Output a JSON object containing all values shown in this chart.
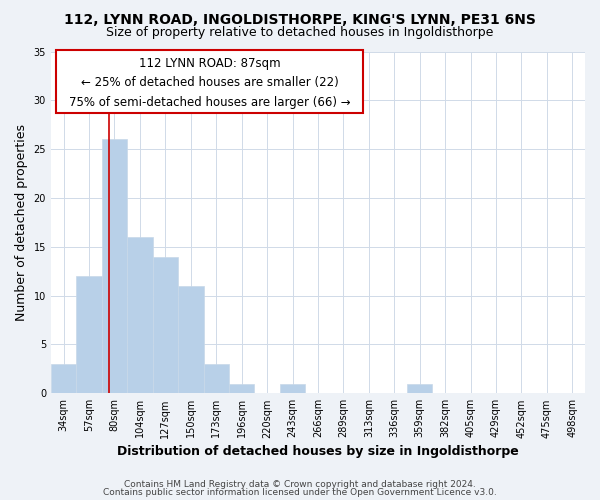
{
  "title": "112, LYNN ROAD, INGOLDISTHORPE, KING'S LYNN, PE31 6NS",
  "subtitle": "Size of property relative to detached houses in Ingoldisthorpe",
  "xlabel": "Distribution of detached houses by size in Ingoldisthorpe",
  "ylabel": "Number of detached properties",
  "bin_labels": [
    "34sqm",
    "57sqm",
    "80sqm",
    "104sqm",
    "127sqm",
    "150sqm",
    "173sqm",
    "196sqm",
    "220sqm",
    "243sqm",
    "266sqm",
    "289sqm",
    "313sqm",
    "336sqm",
    "359sqm",
    "382sqm",
    "405sqm",
    "429sqm",
    "452sqm",
    "475sqm",
    "498sqm"
  ],
  "bar_values": [
    3,
    12,
    26,
    16,
    14,
    11,
    3,
    1,
    0,
    1,
    0,
    0,
    0,
    0,
    1,
    0,
    0,
    0,
    0,
    0,
    0
  ],
  "bar_color": "#b8d0e8",
  "bar_edge_color": "#c8d8e8",
  "vline_color": "#cc0000",
  "vline_bin_index": 2,
  "ylim": [
    0,
    35
  ],
  "yticks": [
    0,
    5,
    10,
    15,
    20,
    25,
    30,
    35
  ],
  "annotation_text_line1": "112 LYNN ROAD: 87sqm",
  "annotation_text_line2": "← 25% of detached houses are smaller (22)",
  "annotation_text_line3": "75% of semi-detached houses are larger (66) →",
  "footer_line1": "Contains HM Land Registry data © Crown copyright and database right 2024.",
  "footer_line2": "Contains public sector information licensed under the Open Government Licence v3.0.",
  "background_color": "#eef2f7",
  "plot_background_color": "#ffffff",
  "grid_color": "#d0dae8",
  "title_fontsize": 10,
  "subtitle_fontsize": 9,
  "axis_label_fontsize": 9,
  "tick_fontsize": 7,
  "footer_fontsize": 6.5,
  "annotation_fontsize": 8.5
}
